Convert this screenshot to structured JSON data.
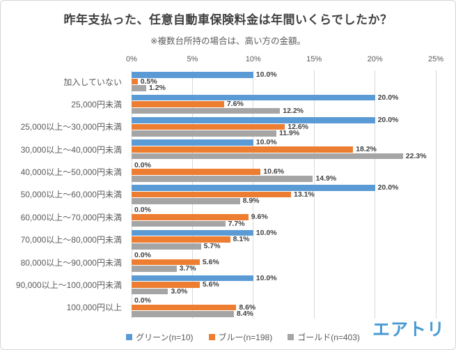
{
  "chart_data": {
    "type": "bar",
    "orientation": "horizontal",
    "title": "昨年支払った、任意自動車保険料金は年間いくらでしたか？",
    "subtitle": "※複数台所持の場合は、高い方の金額。",
    "categories": [
      "加入していない",
      "25,000円未満",
      "25,000以上～30,000円未満",
      "30,000以上～40,000円未満",
      "40,000以上～50,000円未満",
      "50,000以上～60,000円未満",
      "60,000以上～70,000円未満",
      "70,000以上～80,000円未満",
      "80,000以上～90,000円未満",
      "90,000以上～100,000円未満",
      "100,000円以上"
    ],
    "series": [
      {
        "name": "グリーン(n=10)",
        "color": "#5B9BD5",
        "values": [
          10.0,
          20.0,
          20.0,
          10.0,
          0.0,
          20.0,
          0.0,
          10.0,
          0.0,
          10.0,
          0.0
        ]
      },
      {
        "name": "ブルー(n=198)",
        "color": "#ED7D31",
        "values": [
          0.5,
          7.6,
          12.6,
          18.2,
          10.6,
          13.1,
          9.6,
          8.1,
          5.6,
          5.6,
          8.6
        ]
      },
      {
        "name": "ゴールド(n=403)",
        "color": "#A5A5A5",
        "values": [
          1.2,
          12.2,
          11.9,
          22.3,
          14.9,
          8.9,
          7.7,
          5.7,
          3.7,
          3.0,
          8.4
        ]
      }
    ],
    "x_axis": {
      "min": 0,
      "max": 25,
      "ticks": [
        "0%",
        "5%",
        "10%",
        "15%",
        "20%",
        "25%"
      ]
    },
    "legend_position": "bottom",
    "grid": true,
    "data_labels": true,
    "gridline_color": "#D9D9D9"
  },
  "brand": {
    "logo_text": "エアトリ",
    "logo_color": "#4A9BD5"
  }
}
